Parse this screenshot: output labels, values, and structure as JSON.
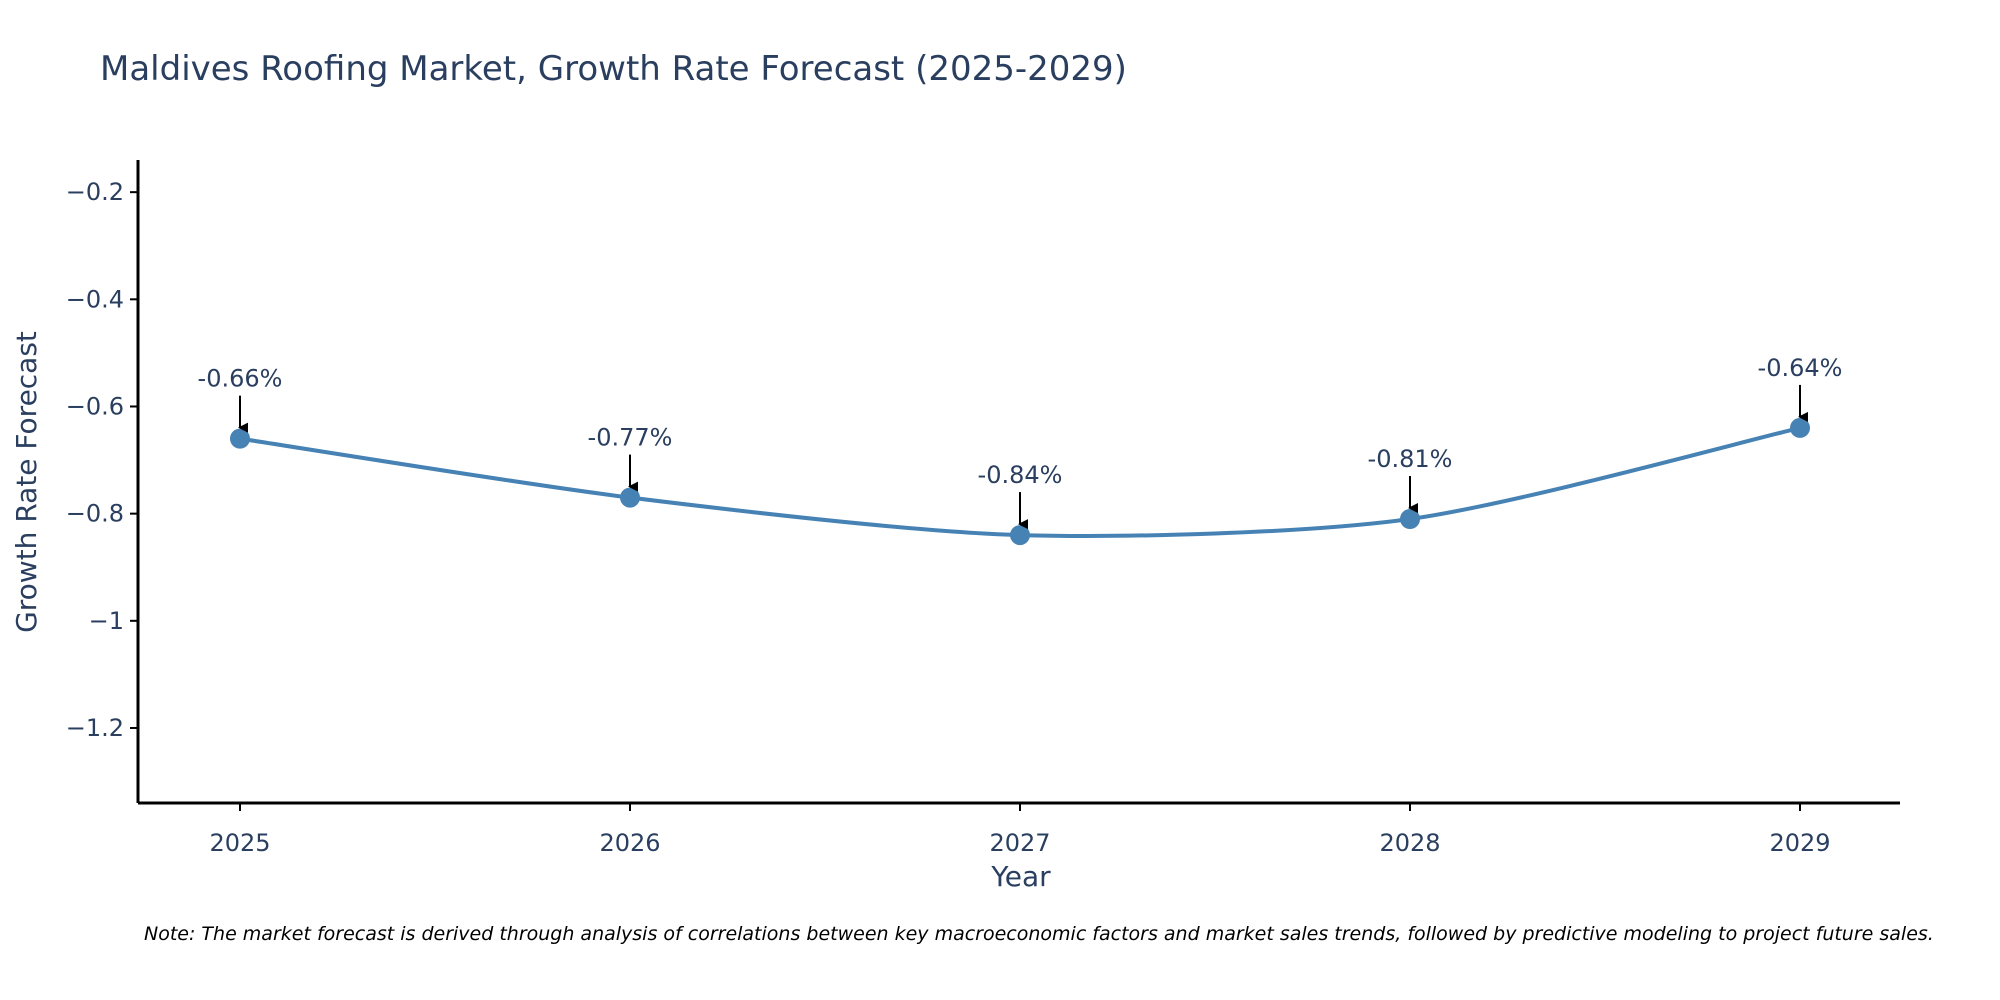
{
  "chart_data": {
    "type": "line",
    "title": "Maldives Roofing Market, Growth Rate Forecast (2025-2029)",
    "xlabel": "Year",
    "ylabel": "Growth Rate Forecast",
    "categories": [
      "2025",
      "2026",
      "2027",
      "2028",
      "2029"
    ],
    "values": [
      -0.66,
      -0.77,
      -0.84,
      -0.81,
      -0.64
    ],
    "data_labels": [
      "-0.66%",
      "-0.77%",
      "-0.84%",
      "-0.81%",
      "-0.64%"
    ],
    "ylim": [
      -1.34,
      -0.14
    ],
    "yticks": [
      -0.2,
      -0.4,
      -0.6,
      -0.8,
      -1,
      -1.2
    ],
    "ytick_labels": [
      "−0.2",
      "−0.4",
      "−0.6",
      "−0.8",
      "−1",
      "−1.2"
    ],
    "line_shape": "spline",
    "grid": false,
    "legend": "none",
    "line_color": "#4682b4",
    "annotation_arrow_color": "#000000"
  },
  "note": "Note: The market forecast is derived through analysis of correlations between key macroeconomic factors and market sales trends, followed by predictive modeling to project future sales."
}
